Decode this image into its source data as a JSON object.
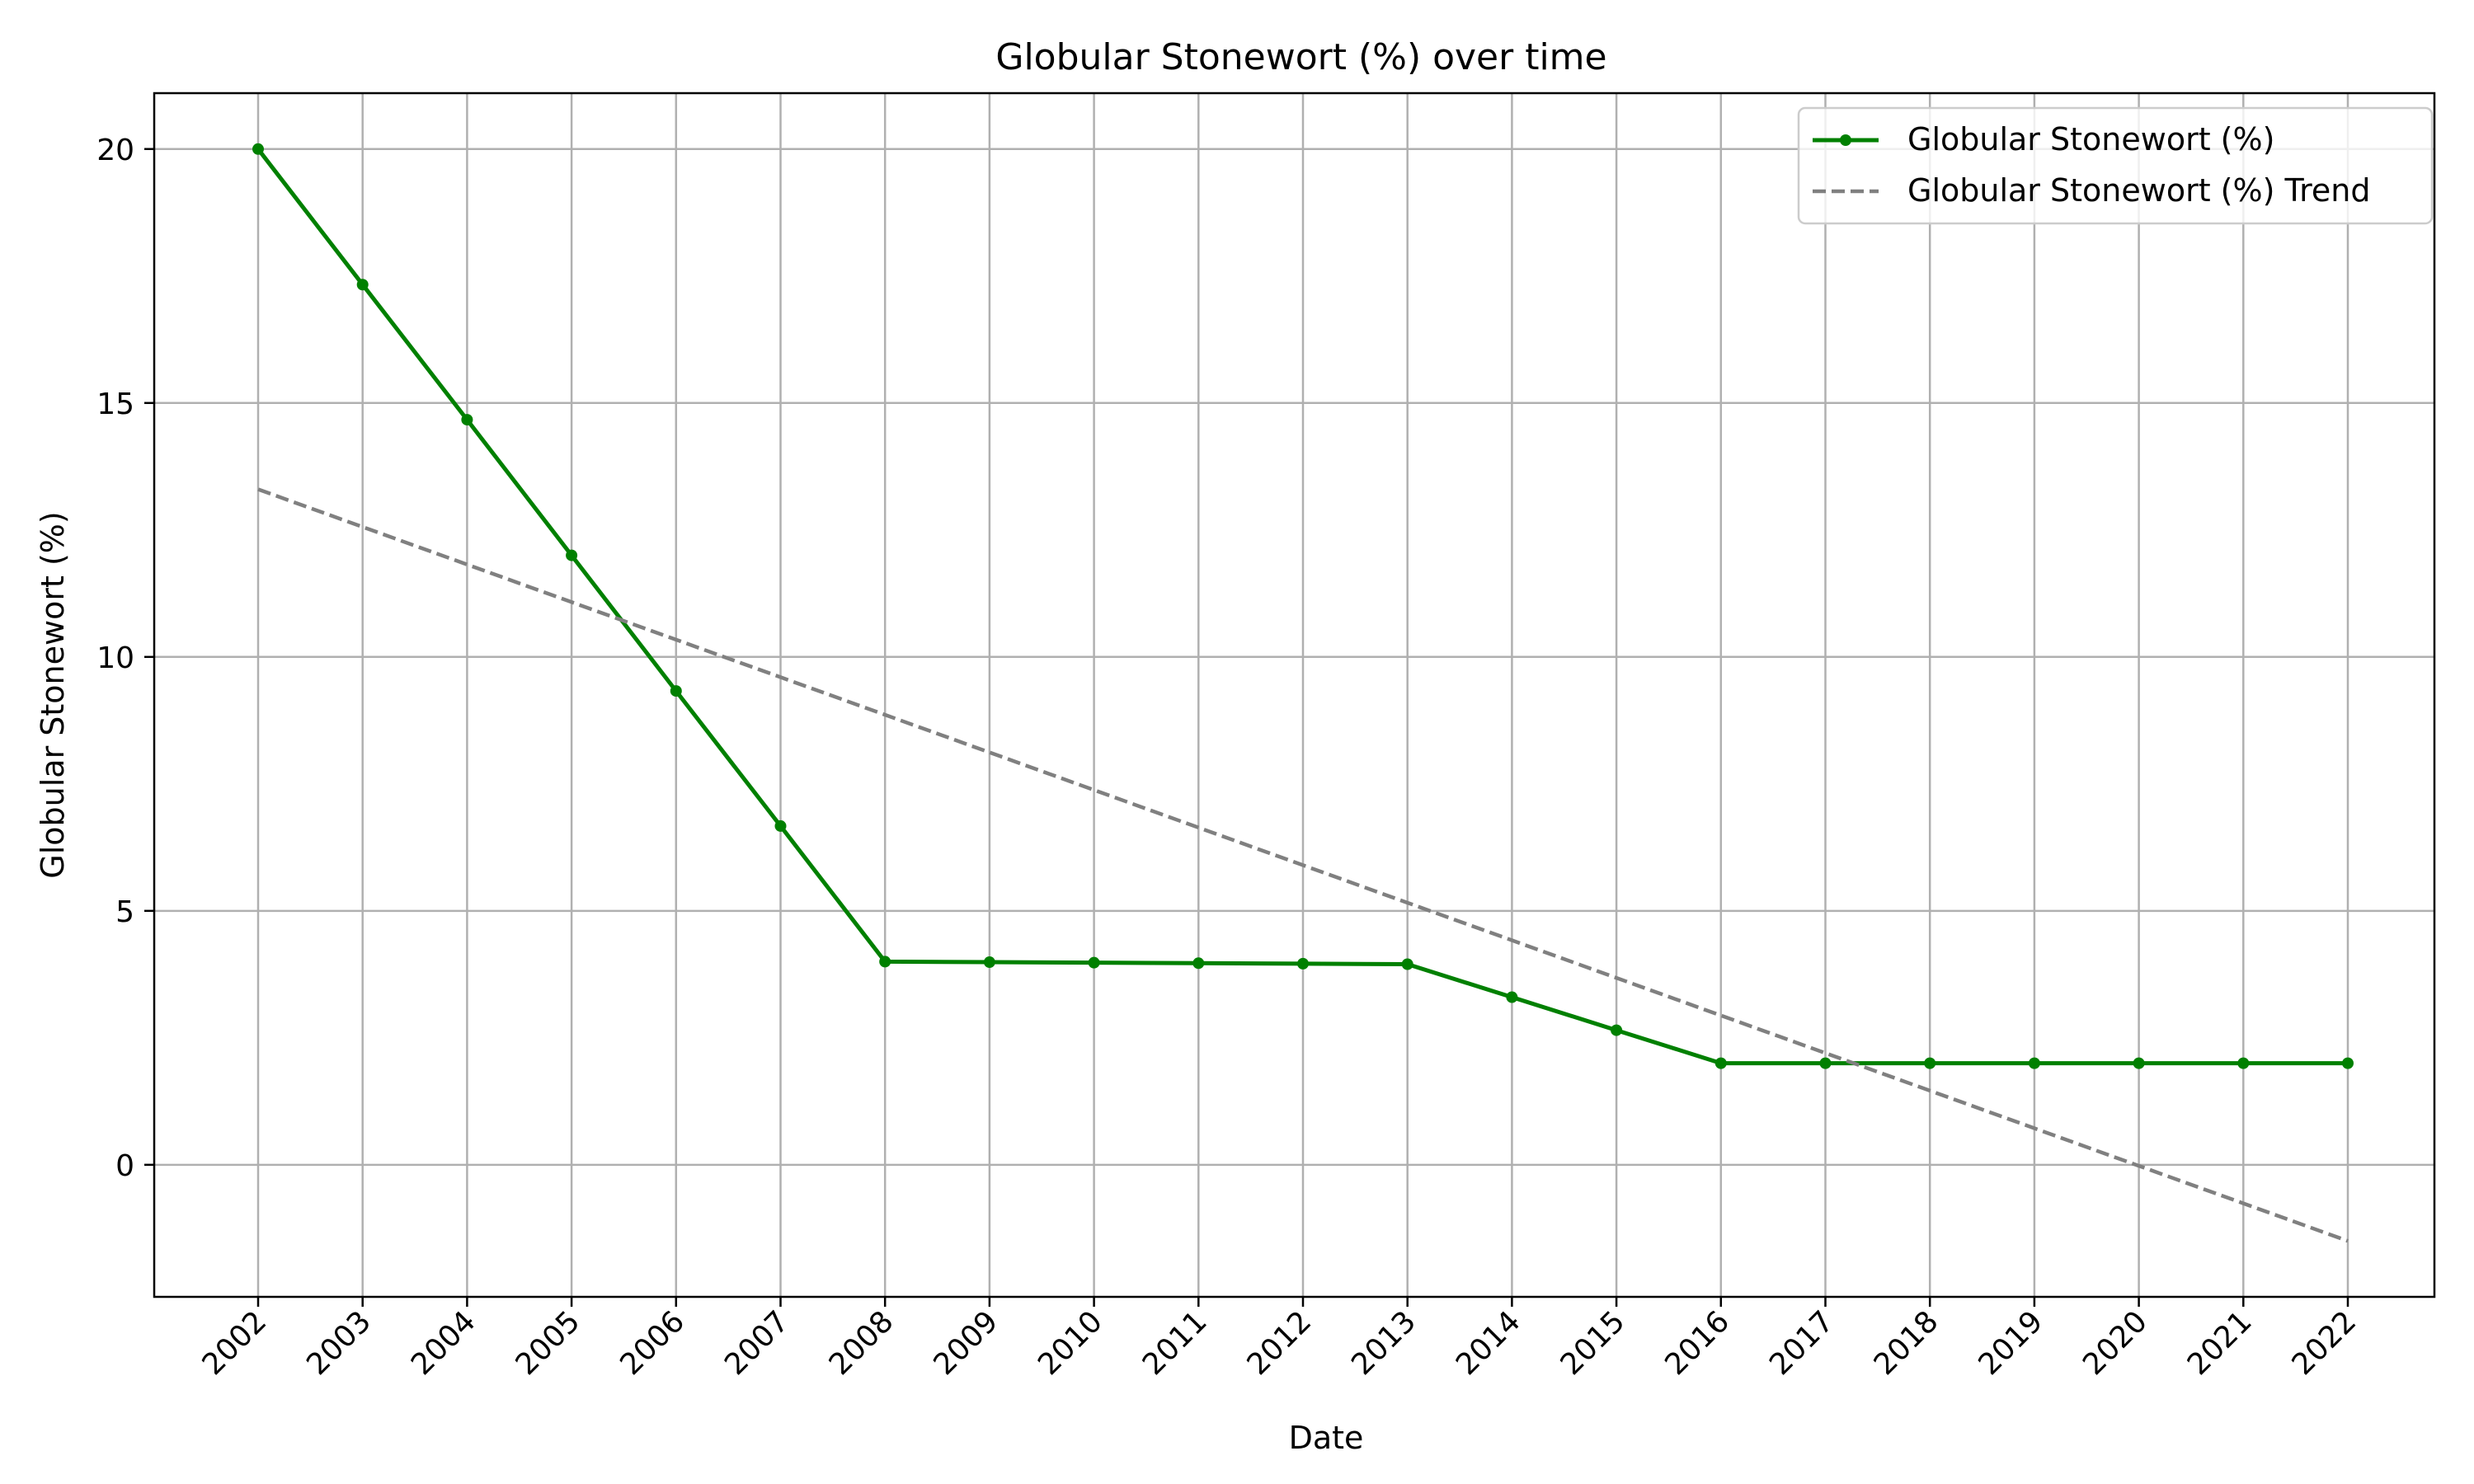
{
  "chart_data": {
    "type": "line",
    "title": "Globular Stonewort (%) over time",
    "xlabel": "Date",
    "ylabel": "Globular Stonewort (%)",
    "categories": [
      "2002",
      "2003",
      "2004",
      "2005",
      "2006",
      "2007",
      "2008",
      "2009",
      "2010",
      "2011",
      "2012",
      "2013",
      "2014",
      "2015",
      "2016",
      "2017",
      "2018",
      "2019",
      "2020",
      "2021",
      "2022"
    ],
    "yticks": [
      0,
      5,
      10,
      15,
      20
    ],
    "ylim": [
      -2.6,
      21.1
    ],
    "grid": true,
    "legend_position": "top-right",
    "series": [
      {
        "name": "Globular Stonewort (%)",
        "style": "solid-with-markers",
        "color": "#008000",
        "values": [
          20.0,
          17.33,
          14.67,
          12.0,
          9.33,
          6.67,
          4.0,
          3.99,
          3.98,
          3.97,
          3.96,
          3.95,
          3.3,
          2.65,
          2.0,
          2.0,
          2.0,
          2.0,
          2.0,
          2.0,
          2.0
        ]
      },
      {
        "name": "Globular Stonewort (%) Trend",
        "style": "dashed",
        "color": "#808080",
        "values": [
          13.3,
          12.56,
          11.82,
          11.08,
          10.34,
          9.6,
          8.86,
          8.12,
          7.38,
          6.64,
          5.9,
          5.16,
          4.42,
          3.68,
          2.94,
          2.2,
          1.46,
          0.72,
          -0.02,
          -0.76,
          -1.5
        ]
      }
    ]
  }
}
